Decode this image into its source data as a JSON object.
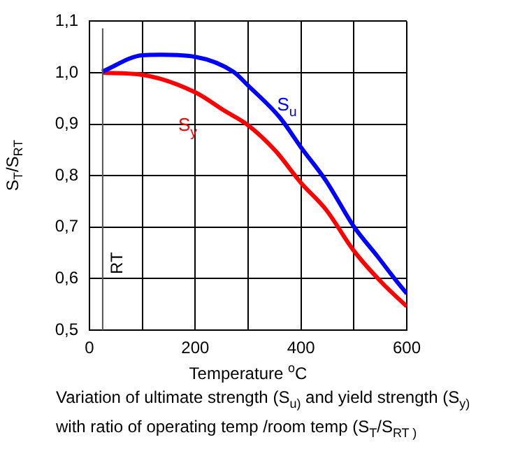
{
  "chart_data": {
    "type": "line",
    "xlabel": "Temperature $^{o}$C",
    "ylabel": "S$_{T}$/S$_{RT}$",
    "xlim": [
      0,
      600
    ],
    "xticks": [
      0,
      {
        "value": 100,
        "label": null
      },
      200,
      {
        "value": 300,
        "label": null
      },
      400,
      {
        "value": 500,
        "label": null
      },
      600
    ],
    "ylim": [
      0.5,
      1.1
    ],
    "yticks": [
      {
        "value": 0.5,
        "label": "0,5"
      },
      {
        "value": 0.6,
        "label": "0,6"
      },
      {
        "value": 0.7,
        "label": "0,7"
      },
      {
        "value": 0.8,
        "label": "0,8"
      },
      {
        "value": 0.9,
        "label": "0,9"
      },
      {
        "value": 1.0,
        "label": "1,0"
      },
      {
        "value": 1.1,
        "label": "1,1"
      }
    ],
    "grid": true,
    "legend": false,
    "marker": "none",
    "line_style": "solid",
    "ref_lines": [
      {
        "axis": "x",
        "value": 25,
        "label": "RT",
        "color": "#555555"
      }
    ],
    "series": [
      {
        "name": "S$_{u}$",
        "color": "#0000ff",
        "x": [
          24,
          100,
          135,
          200,
          272,
          300,
          360,
          400,
          448,
          500,
          544,
          580,
          600
        ],
        "values": [
          1.002,
          1.034,
          1.035,
          1.031,
          1.002,
          0.975,
          0.913,
          0.855,
          0.789,
          0.701,
          0.644,
          0.596,
          0.571
        ]
      },
      {
        "name": "S$_{y}$",
        "color": "#ff0000",
        "x": [
          24,
          100,
          200,
          254,
          300,
          352,
          400,
          448,
          500,
          553,
          600
        ],
        "values": [
          1.0,
          0.996,
          0.962,
          0.927,
          0.898,
          0.848,
          0.786,
          0.733,
          0.654,
          0.592,
          0.546
        ]
      }
    ],
    "annotations": [
      "Variation of ultimate strength (S$_{u)}$ and yield strength (S$_{y)}$",
      "with ratio of operating temp /room temp  (S$_{T}$/S$_{RT )}$"
    ]
  }
}
